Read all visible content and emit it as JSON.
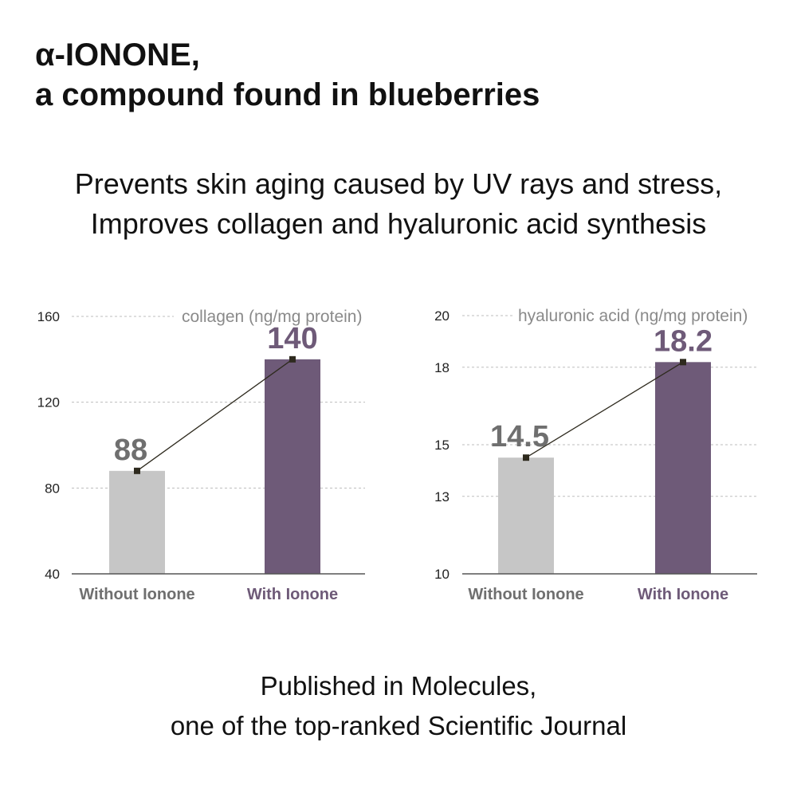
{
  "header": {
    "title_line1": "α-IONONE,",
    "title_line2": "a compound found in blueberries"
  },
  "headline": {
    "line1": "Prevents skin aging caused by UV rays and stress,",
    "line2": "Improves collagen and hyaluronic acid synthesis"
  },
  "footer": {
    "line1": "Published in Molecules,",
    "line2": "one of the top-ranked Scientific Journal"
  },
  "colors": {
    "without": "#c6c6c6",
    "with": "#6e5a78",
    "without_label": "#6f6f6f",
    "with_label": "#6e5a78",
    "grid": "#bdbdbd",
    "baseline": "#555555",
    "connector": "#2e2a1e"
  },
  "chart_data": [
    {
      "type": "bar",
      "unit_label": "collagen (ng/mg protein)",
      "categories": [
        "Without Ionone",
        "With Ionone"
      ],
      "values": [
        88,
        140
      ],
      "value_labels": [
        "88",
        "140"
      ],
      "yticks": [
        40,
        80,
        120,
        160
      ],
      "ylim": [
        40,
        160
      ],
      "grid": true
    },
    {
      "type": "bar",
      "unit_label": "hyaluronic acid (ng/mg protein)",
      "categories": [
        "Without Ionone",
        "With Ionone"
      ],
      "values": [
        14.5,
        18.2
      ],
      "value_labels": [
        "14.5",
        "18.2"
      ],
      "yticks": [
        10,
        13,
        15,
        18,
        20
      ],
      "ylim": [
        10,
        20
      ],
      "grid": true
    }
  ]
}
